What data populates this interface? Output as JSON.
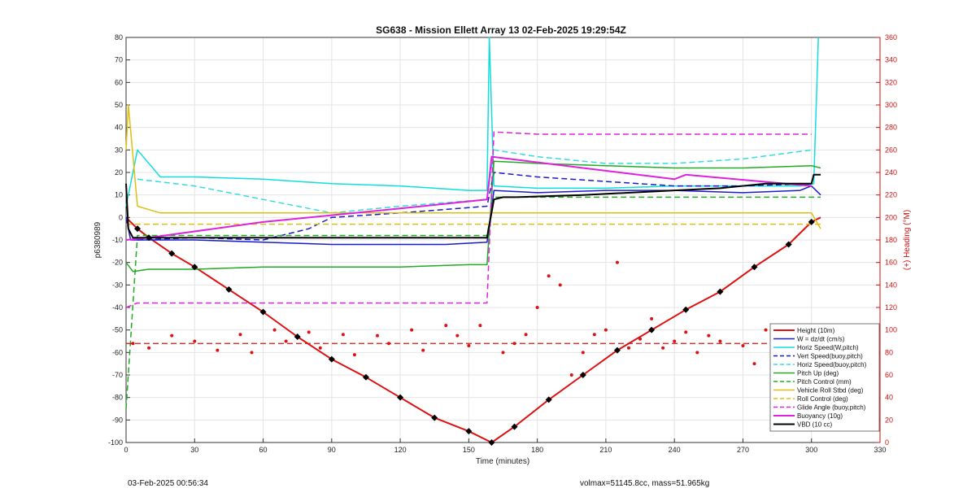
{
  "chart_data": {
    "type": "line",
    "title": "SG638 - Mission Ellett Array 13 02-Feb-2025 19:29:54Z",
    "xlabel": "Time (minutes)",
    "ylabel": "p6380989",
    "y2label": "(+) Heading (°M)",
    "xlim": [
      0,
      330
    ],
    "ylim": [
      -100,
      80
    ],
    "y2lim": [
      0,
      360
    ],
    "xticks": [
      0,
      30,
      60,
      90,
      120,
      150,
      180,
      210,
      240,
      270,
      300,
      330
    ],
    "yticks": [
      -100,
      -90,
      -80,
      -70,
      -60,
      -50,
      -40,
      -30,
      -20,
      -10,
      0,
      10,
      20,
      30,
      40,
      50,
      60,
      70,
      80
    ],
    "y2ticks": [
      0,
      20,
      40,
      60,
      80,
      100,
      120,
      140,
      160,
      180,
      200,
      220,
      240,
      260,
      280,
      300,
      320,
      340,
      360
    ],
    "grid": true,
    "legend_position": "bottom-right",
    "series": [
      {
        "name": "Height (10m)",
        "color": "#dd1111",
        "dash": "solid",
        "width": 2,
        "x": [
          0,
          5,
          10,
          20,
          30,
          45,
          60,
          75,
          90,
          105,
          120,
          135,
          150,
          160,
          170,
          185,
          200,
          215,
          230,
          245,
          260,
          275,
          290,
          300,
          304
        ],
        "y": [
          0,
          -5,
          -9,
          -16,
          -22,
          -32,
          -42,
          -53,
          -63,
          -71,
          -80,
          -89,
          -95,
          -100,
          -93,
          -81,
          -70,
          -59,
          -50,
          -41,
          -33,
          -22,
          -12,
          -2,
          0
        ]
      },
      {
        "name": "W = dz/dt (cm/s)",
        "color": "#1a1acc",
        "dash": "solid",
        "width": 1.5,
        "x": [
          0,
          2,
          10,
          30,
          60,
          90,
          120,
          140,
          158,
          161,
          180,
          210,
          240,
          270,
          295,
          300,
          304
        ],
        "y": [
          0,
          -10,
          -10,
          -10,
          -11,
          -12,
          -12,
          -12,
          -11,
          12,
          11,
          12,
          12,
          11,
          12,
          14,
          10
        ]
      },
      {
        "name": "Horiz Speed(W,pitch)",
        "color": "#11dddd",
        "dash": "solid",
        "width": 1.5,
        "x": [
          0,
          5,
          15,
          30,
          60,
          90,
          120,
          150,
          158,
          159,
          161,
          180,
          210,
          240,
          270,
          295,
          301,
          303
        ],
        "y": [
          5,
          30,
          18,
          18,
          17,
          15,
          14,
          12,
          12,
          80,
          14,
          13,
          13,
          14,
          14,
          14,
          15,
          80
        ]
      },
      {
        "name": "Vert Speed(buoy,pitch)",
        "color": "#1a1acc",
        "dash": "dashed",
        "width": 1.5,
        "x": [
          5,
          30,
          60,
          80,
          90,
          120,
          158,
          161,
          180,
          210,
          240,
          270,
          300
        ],
        "y": [
          -10,
          -9,
          -10,
          -5,
          0,
          2,
          5,
          20,
          18,
          16,
          14,
          14,
          15
        ]
      },
      {
        "name": "Horiz Speed(buoy,pitch)",
        "color": "#33dddd",
        "dash": "dashed",
        "width": 1.5,
        "x": [
          5,
          30,
          60,
          90,
          120,
          158,
          161,
          180,
          210,
          240,
          270,
          300
        ],
        "y": [
          17,
          14,
          8,
          2,
          5,
          8,
          30,
          27,
          24,
          24,
          26,
          30
        ]
      },
      {
        "name": "Pitch Up (deg)",
        "color": "#22aa22",
        "dash": "solid",
        "width": 1.5,
        "x": [
          0,
          3,
          10,
          30,
          60,
          90,
          120,
          150,
          158,
          161,
          180,
          210,
          240,
          270,
          300,
          304
        ],
        "y": [
          -20,
          -24,
          -23,
          -23,
          -22,
          -22,
          -22,
          -21,
          -21,
          25,
          24,
          23,
          22,
          22,
          23,
          22
        ]
      },
      {
        "name": "Pitch Control (mm)",
        "color": "#22aa22",
        "dash": "dashed",
        "width": 1.5,
        "x": [
          0,
          5,
          30,
          60,
          90,
          120,
          158,
          161,
          180,
          210,
          240,
          270,
          300,
          304
        ],
        "y": [
          -85,
          -8,
          -8,
          -8,
          -8,
          -8,
          -8,
          9,
          9,
          9,
          9,
          9,
          9,
          9
        ]
      },
      {
        "name": "Vehicle Roll Stbd (deg)",
        "color": "#ddc010",
        "dash": "solid",
        "width": 1.5,
        "x": [
          0,
          1,
          5,
          15,
          30,
          60,
          90,
          120,
          150,
          158,
          161,
          180,
          210,
          240,
          270,
          300,
          304
        ],
        "y": [
          30,
          50,
          5,
          2,
          2,
          2,
          2,
          2,
          2,
          2,
          2,
          2,
          2,
          2,
          2,
          2,
          -5
        ]
      },
      {
        "name": "Roll Control (deg)",
        "color": "#ddc010",
        "dash": "dashed",
        "width": 1.5,
        "x": [
          0,
          30,
          60,
          90,
          120,
          150,
          158,
          161,
          180,
          210,
          240,
          270,
          300,
          304
        ],
        "y": [
          -3,
          -3,
          -3,
          -3,
          -3,
          -3,
          -3,
          -3,
          -3,
          -3,
          -3,
          -3,
          -3,
          -3
        ]
      },
      {
        "name": "Glide Angle (buoy,pitch)",
        "color": "#dd22dd",
        "dash": "dashed",
        "width": 1.5,
        "x": [
          0,
          5,
          30,
          60,
          90,
          120,
          150,
          158,
          161,
          180,
          210,
          240,
          270,
          300
        ],
        "y": [
          -40,
          -38,
          -38,
          -38,
          -38,
          -38,
          -38,
          -38,
          38,
          37,
          37,
          37,
          37,
          37
        ]
      },
      {
        "name": "Buoyancy (10g)",
        "color": "#dd22dd",
        "dash": "solid",
        "width": 2,
        "x": [
          0,
          10,
          60,
          120,
          158,
          160,
          200,
          240,
          245,
          300
        ],
        "y": [
          -10,
          -9,
          -2,
          4,
          8,
          27,
          22,
          17,
          19,
          14
        ]
      },
      {
        "name": "VBD (10 cc)",
        "color": "#000000",
        "dash": "solid",
        "width": 2,
        "x": [
          0,
          1,
          3,
          10,
          60,
          120,
          158,
          161,
          165,
          170,
          200,
          240,
          260,
          280,
          300,
          301,
          304
        ],
        "y": [
          15,
          -5,
          -9,
          -9,
          -9,
          -9,
          -9,
          8,
          9,
          9,
          10,
          12,
          13,
          15,
          15,
          19,
          19
        ]
      }
    ],
    "heading_series": {
      "name": "(+) Heading (°M)",
      "color": "#dd1111",
      "axis": "right",
      "reference": 88,
      "x": [
        3,
        10,
        20,
        30,
        40,
        50,
        55,
        65,
        70,
        80,
        85,
        95,
        100,
        110,
        115,
        125,
        130,
        140,
        145,
        150,
        155,
        165,
        170,
        175,
        180,
        185,
        190,
        195,
        200,
        205,
        210,
        215,
        220,
        225,
        230,
        235,
        240,
        245,
        250,
        255,
        260,
        270,
        275,
        280,
        285,
        290,
        295,
        300
      ],
      "y": [
        88,
        84,
        95,
        90,
        82,
        96,
        80,
        100,
        90,
        98,
        84,
        96,
        78,
        95,
        88,
        100,
        82,
        104,
        95,
        86,
        104,
        80,
        88,
        96,
        120,
        148,
        140,
        60,
        80,
        96,
        100,
        160,
        84,
        92,
        110,
        84,
        90,
        98,
        80,
        95,
        90,
        86,
        70,
        100,
        84,
        96,
        88,
        92
      ]
    }
  },
  "footer": {
    "timestamp": "03-Feb-2025 00:56:34",
    "stats": "volmax=51145.8cc, mass=51.965kg"
  }
}
